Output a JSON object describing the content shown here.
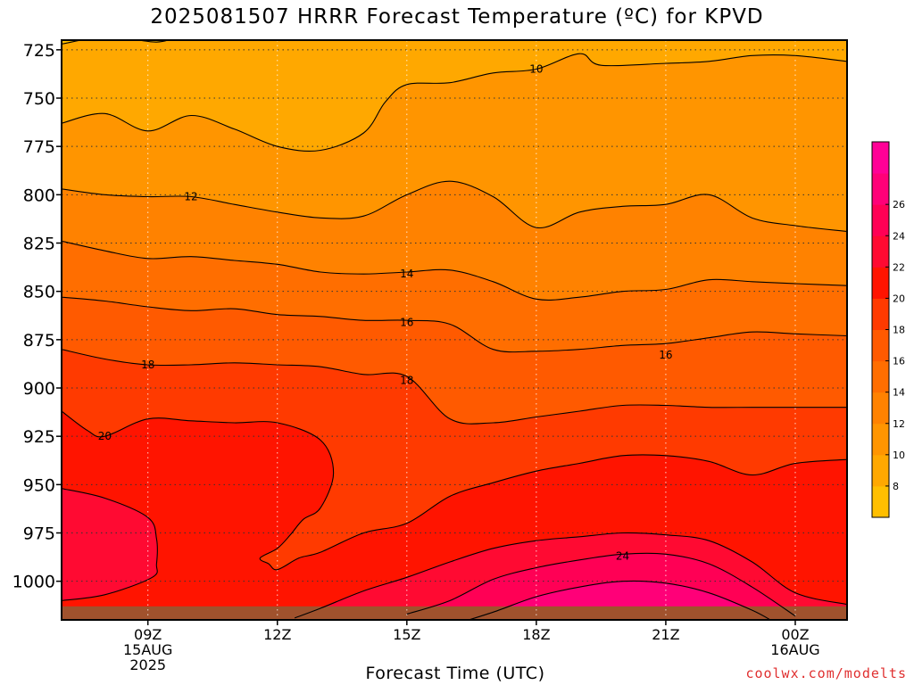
{
  "title": "2025081507 HRRR Forecast Temperature (ºC) for KPVD",
  "credit": "coolwx.com/modelts",
  "chart_data": {
    "type": "contour",
    "title": "2025081507 HRRR Forecast Temperature (ºC) for KPVD",
    "xlabel": "Forecast Time (UTC)",
    "ylabel": "",
    "y_axis": "pressure (hPa), inverted",
    "ylim": [
      1020,
      720
    ],
    "yticks": [
      725,
      750,
      775,
      800,
      825,
      850,
      875,
      900,
      925,
      950,
      975,
      1000
    ],
    "xlim": [
      7,
      25.2
    ],
    "xticks": [
      {
        "x": 9,
        "lines": [
          "09Z",
          "15AUG",
          "2025"
        ]
      },
      {
        "x": 12,
        "lines": [
          "12Z"
        ]
      },
      {
        "x": 15,
        "lines": [
          "15Z"
        ]
      },
      {
        "x": 18,
        "lines": [
          "18Z"
        ]
      },
      {
        "x": 21,
        "lines": [
          "21Z"
        ]
      },
      {
        "x": 24,
        "lines": [
          "00Z",
          "16AUG"
        ]
      }
    ],
    "grid": "dotted",
    "colorbar": {
      "levels": [
        6,
        8,
        10,
        12,
        14,
        16,
        18,
        20,
        22,
        24,
        26,
        28
      ],
      "labels": [
        8,
        10,
        12,
        14,
        16,
        18,
        20,
        22,
        24,
        26
      ],
      "colors": [
        "#ffbf00",
        "#ffa800",
        "#ff9500",
        "#ff8200",
        "#ff6e00",
        "#ff5a00",
        "#ff3a00",
        "#ff1400",
        "#ff0a32",
        "#ff0055",
        "#ff0078",
        "#ff0096"
      ]
    },
    "contour_labels": [
      {
        "text": "10",
        "x": 18.0,
        "p": 735
      },
      {
        "text": "12",
        "x": 10.0,
        "p": 801
      },
      {
        "text": "14",
        "x": 15.0,
        "p": 841
      },
      {
        "text": "16",
        "x": 15.0,
        "p": 866
      },
      {
        "text": "16",
        "x": 21.0,
        "p": 883
      },
      {
        "text": "18",
        "x": 9.0,
        "p": 888
      },
      {
        "text": "18",
        "x": 15.0,
        "p": 896
      },
      {
        "text": "20",
        "x": 8.0,
        "p": 925
      },
      {
        "text": "24",
        "x": 20.0,
        "p": 987
      }
    ],
    "isotherms": [
      {
        "level": 8,
        "points": [
          [
            7,
            722
          ],
          [
            8.1,
            718
          ],
          [
            9.2,
            721
          ],
          [
            9.8,
            717
          ]
        ]
      },
      {
        "level": 10,
        "points": [
          [
            7,
            763
          ],
          [
            8,
            758
          ],
          [
            9,
            767
          ],
          [
            10,
            759
          ],
          [
            11,
            766
          ],
          [
            12,
            775
          ],
          [
            13,
            777
          ],
          [
            14,
            768
          ],
          [
            14.5,
            752
          ],
          [
            15,
            743
          ],
          [
            16,
            742
          ],
          [
            17,
            737
          ],
          [
            18,
            735
          ],
          [
            19,
            727
          ],
          [
            19.5,
            733
          ],
          [
            21,
            732
          ],
          [
            22,
            731
          ],
          [
            23,
            728
          ],
          [
            24,
            728
          ],
          [
            25.2,
            731
          ]
        ]
      },
      {
        "level": 12,
        "points": [
          [
            7,
            797
          ],
          [
            8,
            800
          ],
          [
            9,
            801
          ],
          [
            10,
            801
          ],
          [
            11,
            805
          ],
          [
            12,
            809
          ],
          [
            13,
            812
          ],
          [
            14,
            811
          ],
          [
            15,
            800
          ],
          [
            16,
            793
          ],
          [
            17,
            801
          ],
          [
            18,
            817
          ],
          [
            19,
            809
          ],
          [
            20,
            806
          ],
          [
            21,
            805
          ],
          [
            22,
            800
          ],
          [
            23,
            812
          ],
          [
            24,
            816
          ],
          [
            25.2,
            819
          ]
        ]
      },
      {
        "level": 14,
        "points": [
          [
            7,
            824
          ],
          [
            8,
            829
          ],
          [
            9,
            833
          ],
          [
            10,
            832
          ],
          [
            11,
            834
          ],
          [
            12,
            836
          ],
          [
            13,
            840
          ],
          [
            14,
            841
          ],
          [
            15,
            840
          ],
          [
            16,
            839
          ],
          [
            17,
            845
          ],
          [
            18,
            854
          ],
          [
            19,
            853
          ],
          [
            20,
            850
          ],
          [
            21,
            849
          ],
          [
            22,
            844
          ],
          [
            23,
            845
          ],
          [
            24,
            846
          ],
          [
            25.2,
            847
          ]
        ]
      },
      {
        "level": 16,
        "points": [
          [
            7,
            853
          ],
          [
            8,
            855
          ],
          [
            9,
            858
          ],
          [
            10,
            860
          ],
          [
            11,
            859
          ],
          [
            12,
            862
          ],
          [
            13,
            863
          ],
          [
            14,
            865
          ],
          [
            15,
            865
          ],
          [
            16,
            867
          ],
          [
            17,
            880
          ],
          [
            18,
            881
          ],
          [
            19,
            880
          ],
          [
            20,
            878
          ],
          [
            21,
            877
          ],
          [
            22,
            874
          ],
          [
            23,
            871
          ],
          [
            24,
            872
          ],
          [
            25.2,
            873
          ]
        ]
      },
      {
        "level": 18,
        "points": [
          [
            7,
            880
          ],
          [
            8,
            885
          ],
          [
            9,
            888
          ],
          [
            10,
            888
          ],
          [
            11,
            887
          ],
          [
            12,
            888
          ],
          [
            13,
            889
          ],
          [
            14,
            893
          ],
          [
            15,
            894
          ],
          [
            16,
            916
          ],
          [
            17,
            918
          ],
          [
            18,
            915
          ],
          [
            19,
            912
          ],
          [
            20,
            909
          ],
          [
            21,
            909
          ],
          [
            22,
            910
          ],
          [
            23,
            910
          ],
          [
            24,
            910
          ],
          [
            25.2,
            910
          ]
        ]
      },
      {
        "level": 20,
        "points": [
          [
            7,
            912
          ],
          [
            7.6,
            922
          ],
          [
            8,
            925
          ],
          [
            9,
            916
          ],
          [
            10,
            917
          ],
          [
            11,
            918
          ],
          [
            12,
            918
          ],
          [
            13,
            927
          ],
          [
            13.3,
            944
          ],
          [
            13,
            962
          ],
          [
            12.6,
            968
          ],
          [
            12.3,
            976
          ],
          [
            12,
            983
          ],
          [
            11.6,
            988
          ],
          [
            11.8,
            991
          ],
          [
            12,
            994
          ],
          [
            12.5,
            988
          ],
          [
            13,
            985
          ],
          [
            14,
            975
          ],
          [
            15,
            970
          ],
          [
            16,
            956
          ],
          [
            17,
            949
          ],
          [
            18,
            943
          ],
          [
            19,
            939
          ],
          [
            20,
            935
          ],
          [
            21,
            935
          ],
          [
            22,
            938
          ],
          [
            23,
            945
          ],
          [
            24,
            939
          ],
          [
            25.2,
            937
          ]
        ]
      },
      {
        "level": 22,
        "points": [
          [
            7,
            952
          ],
          [
            8,
            957
          ],
          [
            9,
            967
          ],
          [
            9.2,
            978
          ],
          [
            9.2,
            991
          ],
          [
            9.1,
            998
          ],
          [
            8,
            1007
          ],
          [
            7,
            1010
          ]
        ]
      },
      {
        "level": 22,
        "points": [
          [
            12.4,
            1019
          ],
          [
            13,
            1014
          ],
          [
            14,
            1005
          ],
          [
            15,
            998
          ],
          [
            16,
            990
          ],
          [
            17,
            983
          ],
          [
            18,
            979
          ],
          [
            19,
            977
          ],
          [
            20,
            975
          ],
          [
            21,
            976
          ],
          [
            22,
            979
          ],
          [
            23,
            990
          ],
          [
            24,
            1006
          ],
          [
            25.2,
            1012
          ]
        ]
      },
      {
        "level": 24,
        "points": [
          [
            15,
            1017
          ],
          [
            16,
            1010
          ],
          [
            17,
            999
          ],
          [
            18,
            993
          ],
          [
            19,
            989
          ],
          [
            20,
            986
          ],
          [
            21,
            986
          ],
          [
            22,
            991
          ],
          [
            23,
            1003
          ],
          [
            24,
            1018
          ]
        ]
      },
      {
        "level": 26,
        "points": [
          [
            16,
            1023
          ],
          [
            17,
            1016
          ],
          [
            18,
            1008
          ],
          [
            19,
            1003
          ],
          [
            20,
            1000
          ],
          [
            21,
            1001
          ],
          [
            22,
            1006
          ],
          [
            23,
            1015
          ],
          [
            23.5,
            1021
          ]
        ]
      }
    ],
    "ground": {
      "pressure": 1013,
      "color": "#a0522d"
    }
  }
}
